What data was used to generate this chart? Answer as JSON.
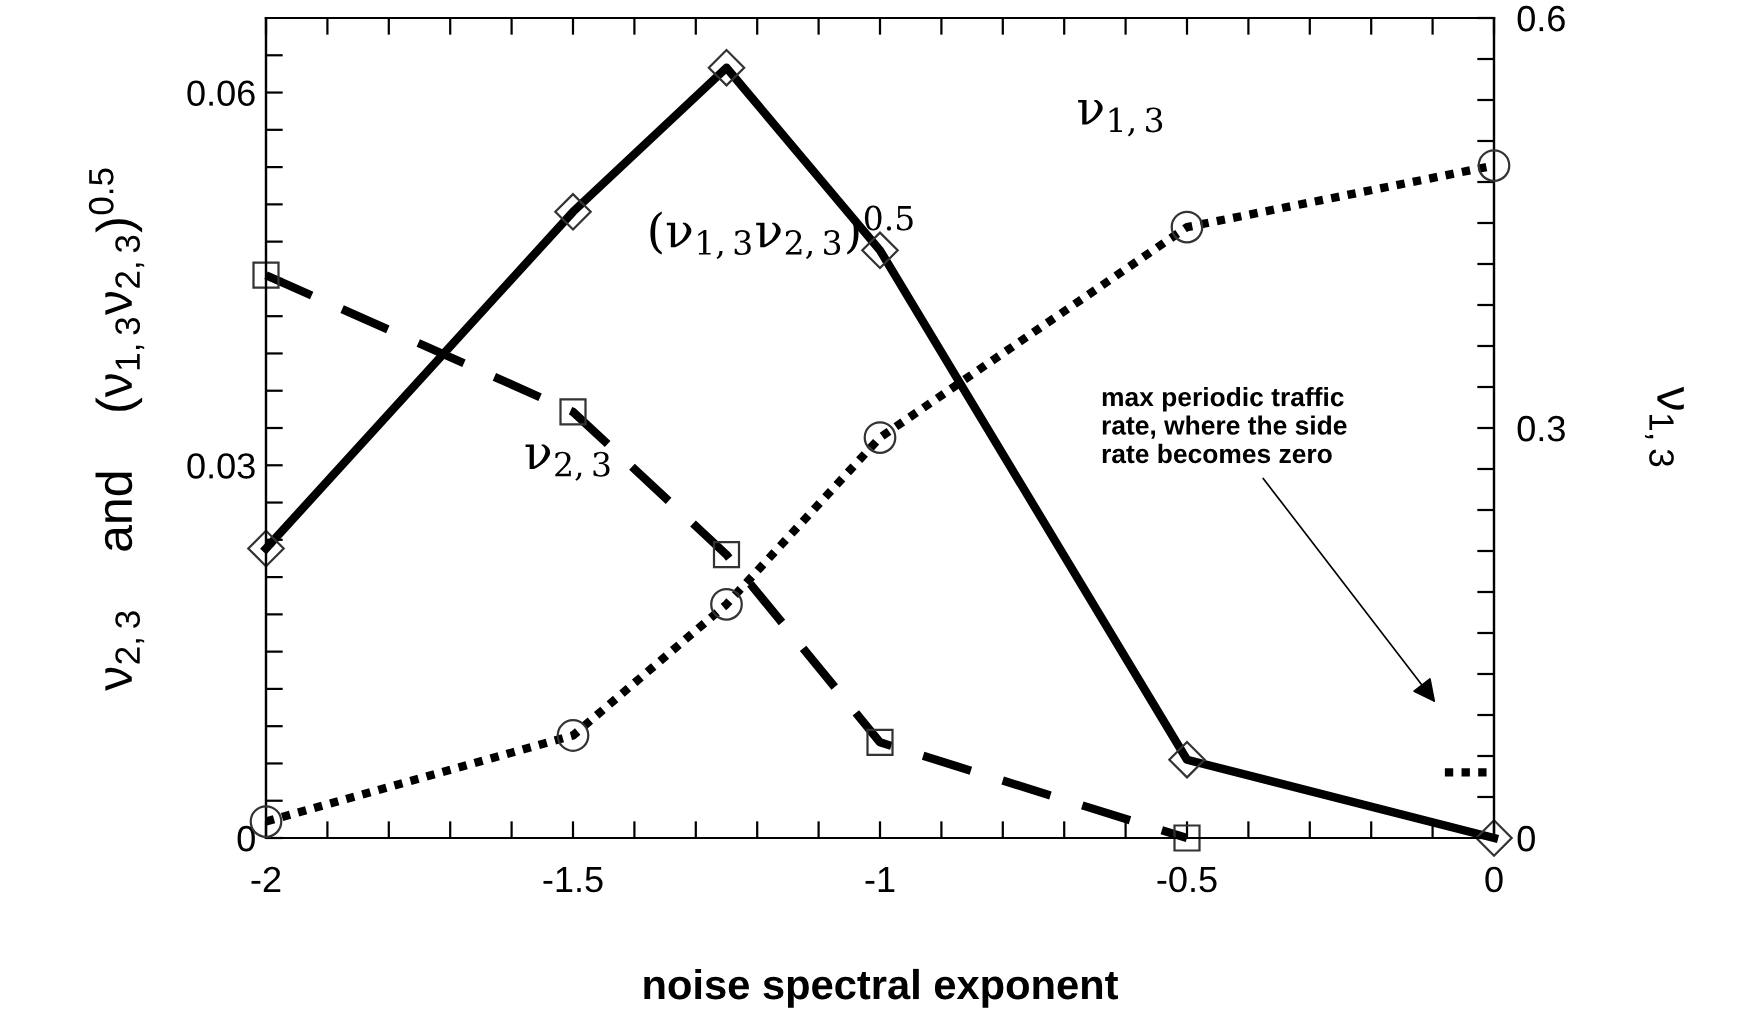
{
  "chart_data": {
    "type": "line",
    "xlabel": "noise spectral exponent",
    "ylabel": "ν$_{2,3}$    and    (ν$_{1,3}$ν$_{2,3}$)$^{0.5}$",
    "y2label": "ν$_{1,3}$",
    "x": [
      -2,
      -1.5,
      -1.25,
      -1,
      -0.5,
      0
    ],
    "series": [
      {
        "name": "ν$_{2,3}$",
        "color": "#000000",
        "marker": "square",
        "line_style": "dashed",
        "values": [
          0.0453,
          0.0343,
          0.0228,
          0.0077,
          0,
          null
        ]
      },
      {
        "name": "(ν$_{1,3}$ν$_{2,3}$)$^{0.5}$",
        "color": "#000000",
        "marker": "diamond",
        "line_style": "solid",
        "values": [
          0.0233,
          0.0504,
          0.062,
          0.0473,
          0.0063,
          0
        ]
      },
      {
        "name": "ν$_{1,3}$",
        "color": "#000000",
        "marker": "circle",
        "line_style": "dotted",
        "axis": "y2",
        "values": [
          0.012,
          0.075,
          0.171,
          0.293,
          0.447,
          0.492
        ]
      },
      {
        "color": "#000000",
        "marker": "none",
        "line_style": "dotted",
        "axis": "y2",
        "x": [
          -0.08,
          0
        ],
        "values": [
          0.048,
          0.048
        ]
      }
    ],
    "annotations": [
      "max periodic traffic\nrate, where the side\nrate becomes zero"
    ],
    "xlim": [
      -2,
      0
    ],
    "ylim": [
      0,
      0.066
    ],
    "y2lim": [
      0,
      0.6
    ],
    "xticks": [
      -2,
      {
        "value": -1.9,
        "label": null
      },
      {
        "value": -1.8,
        "label": null
      },
      {
        "value": -1.7,
        "label": null
      },
      {
        "value": -1.6,
        "label": null
      },
      -1.5,
      {
        "value": -1.4,
        "label": null
      },
      {
        "value": -1.3,
        "label": null
      },
      {
        "value": -1.2,
        "label": null
      },
      {
        "value": -1.1,
        "label": null
      },
      -1,
      {
        "value": -0.9,
        "label": null
      },
      {
        "value": -0.8,
        "label": null
      },
      {
        "value": -0.7,
        "label": null
      },
      {
        "value": -0.6,
        "label": null
      },
      -0.5,
      {
        "value": -0.4,
        "label": null
      },
      {
        "value": -0.3,
        "label": null
      },
      {
        "value": -0.2,
        "label": null
      },
      {
        "value": -0.1,
        "label": null
      },
      0
    ],
    "yticks": [
      0,
      {
        "value": 0.003,
        "label": null
      },
      {
        "value": 0.006,
        "label": null
      },
      {
        "value": 0.009,
        "label": null
      },
      {
        "value": 0.012,
        "label": null
      },
      {
        "value": 0.015,
        "label": null
      },
      {
        "value": 0.018,
        "label": null
      },
      {
        "value": 0.021,
        "label": null
      },
      {
        "value": 0.024,
        "label": null
      },
      {
        "value": 0.027,
        "label": null
      },
      0.03,
      {
        "value": 0.033,
        "label": null
      },
      {
        "value": 0.036,
        "label": null
      },
      {
        "value": 0.039,
        "label": null
      },
      {
        "value": 0.042,
        "label": null
      },
      {
        "value": 0.045,
        "label": null
      },
      {
        "value": 0.048,
        "label": null
      },
      {
        "value": 0.051,
        "label": null
      },
      {
        "value": 0.054,
        "label": null
      },
      {
        "value": 0.057,
        "label": null
      },
      0.06,
      {
        "value": 0.063,
        "label": null
      }
    ],
    "y2ticks": [
      0,
      {
        "value": 0.03,
        "label": null
      },
      {
        "value": 0.06,
        "label": null
      },
      {
        "value": 0.09,
        "label": null
      },
      {
        "value": 0.12,
        "label": null
      },
      {
        "value": 0.15,
        "label": null
      },
      {
        "value": 0.18,
        "label": null
      },
      {
        "value": 0.21,
        "label": null
      },
      {
        "value": 0.24,
        "label": null
      },
      {
        "value": 0.27,
        "label": null
      },
      0.3,
      {
        "value": 0.33,
        "label": null
      },
      {
        "value": 0.36,
        "label": null
      },
      {
        "value": 0.39,
        "label": null
      },
      {
        "value": 0.42,
        "label": null
      },
      {
        "value": 0.45,
        "label": null
      },
      {
        "value": 0.48,
        "label": null
      },
      {
        "value": 0.51,
        "label": null
      },
      {
        "value": 0.54,
        "label": null
      },
      {
        "value": 0.57,
        "label": null
      },
      0.6
    ],
    "grid": false,
    "legend": false
  }
}
